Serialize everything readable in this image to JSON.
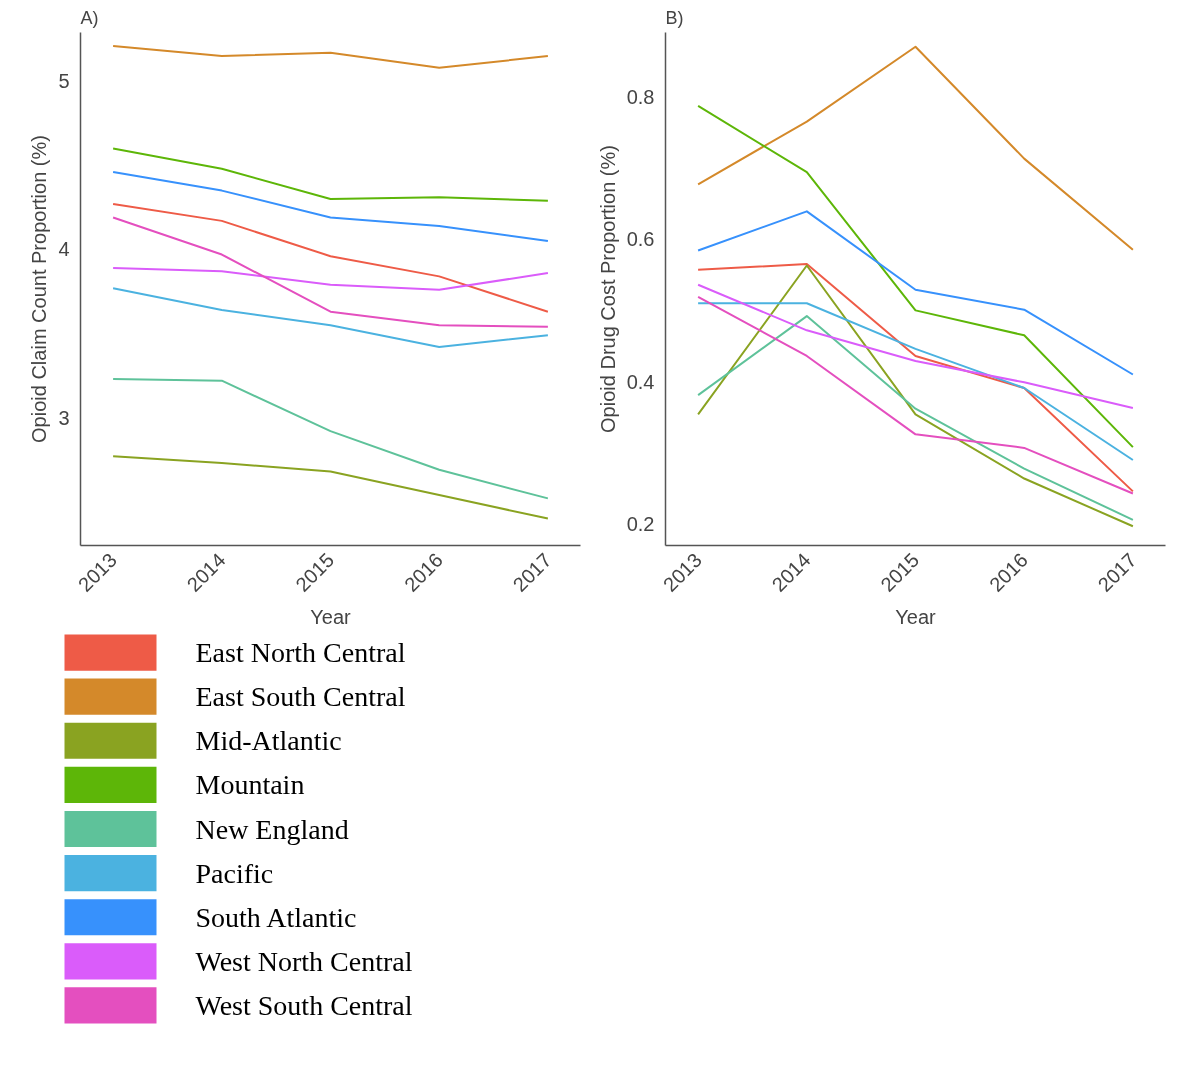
{
  "chart_data": [
    {
      "type": "line",
      "title": "A)",
      "xlabel": "Year",
      "ylabel": "Opioid Claim Count Proportion (%)",
      "categories": [
        "2013",
        "2014",
        "2015",
        "2016",
        "2017"
      ],
      "ylim": [
        2.24,
        5.29
      ],
      "yticks": [
        3,
        4,
        5
      ],
      "legend": "bottom",
      "series": [
        {
          "name": "East North Central",
          "color": "#ee5b47",
          "values": [
            4.27,
            4.17,
            3.96,
            3.84,
            3.63
          ]
        },
        {
          "name": "East South Central",
          "color": "#d4892a",
          "values": [
            5.21,
            5.15,
            5.17,
            5.08,
            5.15
          ]
        },
        {
          "name": "Mid-Atlantic",
          "color": "#8aa321",
          "values": [
            2.77,
            2.73,
            2.68,
            2.54,
            2.4
          ]
        },
        {
          "name": "Mountain",
          "color": "#5db608",
          "values": [
            4.6,
            4.48,
            4.3,
            4.31,
            4.29
          ]
        },
        {
          "name": "New England",
          "color": "#5ec29a",
          "values": [
            3.23,
            3.22,
            2.92,
            2.69,
            2.52
          ]
        },
        {
          "name": "Pacific",
          "color": "#4bb2e0",
          "values": [
            3.77,
            3.64,
            3.55,
            3.42,
            3.49
          ]
        },
        {
          "name": "South Atlantic",
          "color": "#3791fc",
          "values": [
            4.46,
            4.35,
            4.19,
            4.14,
            4.05
          ]
        },
        {
          "name": "West North Central",
          "color": "#da5cfa",
          "values": [
            3.89,
            3.87,
            3.79,
            3.76,
            3.86
          ]
        },
        {
          "name": "West South Central",
          "color": "#e44fbf",
          "values": [
            4.19,
            3.97,
            3.63,
            3.55,
            3.54
          ]
        }
      ]
    },
    {
      "type": "line",
      "title": "B)",
      "xlabel": "Year",
      "ylabel": "Opioid Drug Cost Proportion (%)",
      "categories": [
        "2013",
        "2014",
        "2015",
        "2016",
        "2017"
      ],
      "ylim": [
        0.17,
        0.89
      ],
      "yticks": [
        0.2,
        0.4,
        0.6,
        0.8
      ],
      "legend": "bottom",
      "series": [
        {
          "name": "East North Central",
          "color": "#ee5b47",
          "values": [
            0.557,
            0.565,
            0.436,
            0.391,
            0.246
          ]
        },
        {
          "name": "East South Central",
          "color": "#d4892a",
          "values": [
            0.677,
            0.765,
            0.87,
            0.713,
            0.585
          ]
        },
        {
          "name": "Mid-Atlantic",
          "color": "#8aa321",
          "values": [
            0.354,
            0.563,
            0.354,
            0.264,
            0.197
          ]
        },
        {
          "name": "Mountain",
          "color": "#5db608",
          "values": [
            0.787,
            0.694,
            0.5,
            0.465,
            0.308
          ]
        },
        {
          "name": "New England",
          "color": "#5ec29a",
          "values": [
            0.381,
            0.492,
            0.362,
            0.278,
            0.206
          ]
        },
        {
          "name": "Pacific",
          "color": "#4bb2e0",
          "values": [
            0.51,
            0.51,
            0.446,
            0.391,
            0.29
          ]
        },
        {
          "name": "South Atlantic",
          "color": "#3791fc",
          "values": [
            0.584,
            0.639,
            0.529,
            0.501,
            0.41
          ]
        },
        {
          "name": "West North Central",
          "color": "#da5cfa",
          "values": [
            0.536,
            0.472,
            0.429,
            0.399,
            0.363
          ]
        },
        {
          "name": "West South Central",
          "color": "#e44fbf",
          "values": [
            0.519,
            0.436,
            0.326,
            0.307,
            0.243
          ]
        }
      ]
    }
  ]
}
